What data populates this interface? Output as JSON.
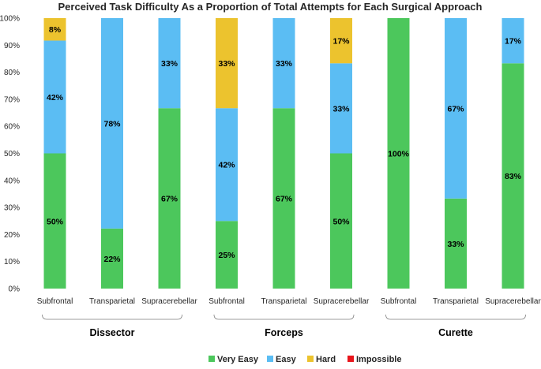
{
  "chart_data": {
    "type": "bar",
    "stacked": true,
    "normalized": true,
    "title": "Perceived Task Difficulty  As a Proportion of Total Attempts for Each Surgical Approach",
    "xlabel": "",
    "ylabel": "",
    "ylim": [
      0,
      100
    ],
    "y_ticks": [
      "0%",
      "10%",
      "20%",
      "30%",
      "40%",
      "50%",
      "60%",
      "70%",
      "80%",
      "90%",
      "100%"
    ],
    "categories": [
      "Subfrontal",
      "Transparietal",
      "Supracerebellar",
      "Subfrontal",
      "Transparietal",
      "Supracerebellar",
      "Subfrontal",
      "Transparietal",
      "Supracerebellar"
    ],
    "groups": [
      {
        "name": "Dissector",
        "categories": [
          0,
          1,
          2
        ]
      },
      {
        "name": "Forceps",
        "categories": [
          3,
          4,
          5
        ]
      },
      {
        "name": "Curette",
        "categories": [
          6,
          7,
          8
        ]
      }
    ],
    "series": [
      {
        "name": "Very Easy",
        "color": "#4cc75c",
        "values": [
          50,
          22.2,
          66.7,
          25,
          66.7,
          50,
          100,
          33.3,
          83.3
        ],
        "labels": [
          "50%",
          "22%",
          "67%",
          "25%",
          "67%",
          "50%",
          "100%",
          "33%",
          "83%"
        ]
      },
      {
        "name": "Easy",
        "color": "#5bbdf3",
        "values": [
          41.7,
          77.8,
          33.3,
          41.7,
          33.3,
          33.3,
          0,
          66.7,
          16.7
        ],
        "labels": [
          "42%",
          "78%",
          "33%",
          "42%",
          "33%",
          "33%",
          "",
          "67%",
          "17%"
        ]
      },
      {
        "name": "Hard",
        "color": "#ecc32e",
        "values": [
          8.3,
          0,
          0,
          33.3,
          0,
          16.7,
          0,
          0,
          0
        ],
        "labels": [
          "8%",
          "",
          "",
          "33%",
          "",
          "17%",
          "",
          "",
          ""
        ]
      },
      {
        "name": "Impossible",
        "color": "#e8151b",
        "values": [
          0,
          0,
          0,
          0,
          0,
          0,
          0,
          0,
          0
        ],
        "labels": [
          "",
          "",
          "",
          "",
          "",
          "",
          "",
          "",
          ""
        ]
      }
    ],
    "grid": false,
    "legend_position": "bottom"
  }
}
